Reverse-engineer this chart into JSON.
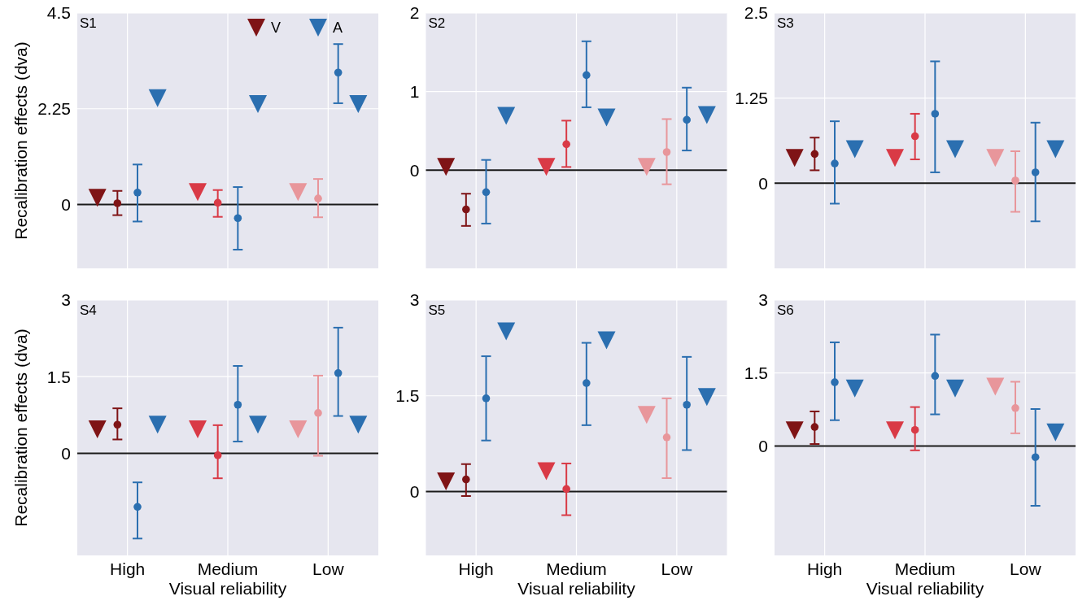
{
  "chart_data": [
    {
      "type": "scatter",
      "categories": [
        null,
        null,
        null
      ],
      "ylim": [
        -1.5,
        4.5
      ],
      "yticks": [
        0,
        2.25,
        4.5
      ],
      "ylabel": "Recalibration effects (dva)",
      "tick_labels": "y",
      "grid": true,
      "legend": "top right",
      "annotations": [
        "S1"
      ],
      "ref_lines": [
        {
          "axis": "y",
          "value": 0,
          "color": "#1a1a1a"
        }
      ],
      "series": [
        {
          "type": "scatter",
          "name": "V",
          "marker": "triangle",
          "colors": [
            "#7f1416",
            "#d93a46",
            "#e8969b"
          ],
          "values": [
            0.16,
            0.29,
            0.29
          ]
        },
        {
          "type": "scatter",
          "marker": "circle",
          "colors": [
            "#7f1416",
            "#d93a46",
            "#e8969b"
          ],
          "values": [
            0.03,
            0.04,
            0.14
          ],
          "errors": [
            [
              -0.25,
              0.32
            ],
            [
              -0.29,
              0.34
            ],
            [
              -0.3,
              0.6
            ]
          ]
        },
        {
          "type": "scatter",
          "marker": "circle",
          "colors": [
            "#2b6fb0",
            "#2b6fb0",
            "#2b6fb0"
          ],
          "values": [
            0.28,
            -0.32,
            3.1
          ],
          "errors": [
            [
              -0.4,
              0.94
            ],
            [
              -1.06,
              0.41
            ],
            [
              2.38,
              3.77
            ]
          ]
        },
        {
          "type": "scatter",
          "name": "A",
          "marker": "triangle",
          "colors": [
            "#2b6fb0",
            "#2b6fb0",
            "#2b6fb0"
          ],
          "values": [
            2.5,
            2.36,
            2.36
          ]
        }
      ]
    },
    {
      "type": "scatter",
      "categories": [
        null,
        null,
        null
      ],
      "ylim": [
        -1.25,
        2
      ],
      "yticks": [
        0,
        1,
        2
      ],
      "tick_labels": "y",
      "grid": true,
      "annotations": [
        "S2"
      ],
      "ref_lines": [
        {
          "axis": "y",
          "value": 0,
          "color": "#1a1a1a"
        }
      ],
      "series": [
        {
          "type": "scatter",
          "marker": "triangle",
          "colors": [
            "#7f1416",
            "#d93a46",
            "#e8969b"
          ],
          "values": [
            0.04,
            0.04,
            0.04
          ]
        },
        {
          "type": "scatter",
          "marker": "circle",
          "colors": [
            "#7f1416",
            "#d93a46",
            "#e8969b"
          ],
          "values": [
            -0.5,
            0.33,
            0.23
          ],
          "errors": [
            [
              -0.71,
              -0.3
            ],
            [
              0.04,
              0.63
            ],
            [
              -0.18,
              0.65
            ]
          ]
        },
        {
          "type": "scatter",
          "marker": "circle",
          "colors": [
            "#2b6fb0",
            "#2b6fb0",
            "#2b6fb0"
          ],
          "values": [
            -0.28,
            1.21,
            0.64
          ],
          "errors": [
            [
              -0.68,
              0.13
            ],
            [
              0.8,
              1.64
            ],
            [
              0.25,
              1.05
            ]
          ]
        },
        {
          "type": "scatter",
          "marker": "triangle",
          "colors": [
            "#2b6fb0",
            "#2b6fb0",
            "#2b6fb0"
          ],
          "values": [
            0.69,
            0.67,
            0.7
          ]
        }
      ]
    },
    {
      "type": "scatter",
      "categories": [
        null,
        null,
        null
      ],
      "ylim": [
        -1.25,
        2.5
      ],
      "yticks": [
        0,
        1.25,
        2.5
      ],
      "tick_labels": "y",
      "grid": true,
      "annotations": [
        "S3"
      ],
      "ref_lines": [
        {
          "axis": "y",
          "value": 0,
          "color": "#1a1a1a"
        }
      ],
      "series": [
        {
          "type": "scatter",
          "marker": "triangle",
          "colors": [
            "#7f1416",
            "#d93a46",
            "#e8969b"
          ],
          "values": [
            0.37,
            0.37,
            0.37
          ]
        },
        {
          "type": "scatter",
          "marker": "circle",
          "colors": [
            "#7f1416",
            "#d93a46",
            "#e8969b"
          ],
          "values": [
            0.43,
            0.69,
            0.04
          ],
          "errors": [
            [
              0.19,
              0.67
            ],
            [
              0.35,
              1.02
            ],
            [
              -0.42,
              0.47
            ]
          ]
        },
        {
          "type": "scatter",
          "marker": "circle",
          "colors": [
            "#2b6fb0",
            "#2b6fb0",
            "#2b6fb0"
          ],
          "values": [
            0.29,
            1.02,
            0.16
          ],
          "errors": [
            [
              -0.3,
              0.91
            ],
            [
              0.16,
              1.79
            ],
            [
              -0.56,
              0.89
            ]
          ]
        },
        {
          "type": "scatter",
          "marker": "triangle",
          "colors": [
            "#2b6fb0",
            "#2b6fb0",
            "#2b6fb0"
          ],
          "values": [
            0.5,
            0.5,
            0.5
          ]
        }
      ]
    },
    {
      "type": "scatter",
      "categories": [
        "High",
        "Medium",
        "Low"
      ],
      "ylim": [
        -2,
        3
      ],
      "yticks": [
        0,
        1.5,
        3
      ],
      "ylabel": "Recalibration effects (dva)",
      "xlabel": "Visual reliability",
      "grid": true,
      "annotations": [
        "S4"
      ],
      "ref_lines": [
        {
          "axis": "y",
          "value": 0,
          "color": "#1a1a1a"
        }
      ],
      "series": [
        {
          "type": "scatter",
          "marker": "triangle",
          "colors": [
            "#7f1416",
            "#d93a46",
            "#e8969b"
          ],
          "values": [
            0.47,
            0.47,
            0.47
          ]
        },
        {
          "type": "scatter",
          "marker": "circle",
          "colors": [
            "#7f1416",
            "#d93a46",
            "#e8969b"
          ],
          "values": [
            0.56,
            -0.04,
            0.79
          ],
          "errors": [
            [
              0.27,
              0.88
            ],
            [
              -0.49,
              0.55
            ],
            [
              -0.05,
              1.52
            ]
          ]
        },
        {
          "type": "scatter",
          "marker": "circle",
          "colors": [
            "#2b6fb0",
            "#2b6fb0",
            "#2b6fb0"
          ],
          "values": [
            -1.05,
            0.95,
            1.57
          ],
          "errors": [
            [
              -1.67,
              -0.57
            ],
            [
              0.23,
              1.71
            ],
            [
              0.73,
              2.46
            ]
          ]
        },
        {
          "type": "scatter",
          "marker": "triangle",
          "colors": [
            "#2b6fb0",
            "#2b6fb0",
            "#2b6fb0"
          ],
          "values": [
            0.56,
            0.56,
            0.56
          ]
        }
      ]
    },
    {
      "type": "scatter",
      "categories": [
        "High",
        "Medium",
        "Low"
      ],
      "ylim": [
        -1,
        3
      ],
      "yticks": [
        0,
        1.5,
        3
      ],
      "xlabel": "Visual reliability",
      "grid": true,
      "annotations": [
        "S5"
      ],
      "ref_lines": [
        {
          "axis": "y",
          "value": 0,
          "color": "#1a1a1a"
        }
      ],
      "series": [
        {
          "type": "scatter",
          "marker": "triangle",
          "colors": [
            "#7f1416",
            "#d93a46",
            "#e8969b"
          ],
          "values": [
            0.16,
            0.32,
            1.2
          ]
        },
        {
          "type": "scatter",
          "marker": "circle",
          "colors": [
            "#7f1416",
            "#d93a46",
            "#e8969b"
          ],
          "values": [
            0.19,
            0.04,
            0.85
          ],
          "errors": [
            [
              -0.07,
              0.43
            ],
            [
              -0.37,
              0.44
            ],
            [
              0.21,
              1.46
            ]
          ]
        },
        {
          "type": "scatter",
          "marker": "circle",
          "colors": [
            "#2b6fb0",
            "#2b6fb0",
            "#2b6fb0"
          ],
          "values": [
            1.46,
            1.7,
            1.36
          ],
          "errors": [
            [
              0.8,
              2.12
            ],
            [
              1.04,
              2.33
            ],
            [
              0.65,
              2.11
            ]
          ]
        },
        {
          "type": "scatter",
          "marker": "triangle",
          "colors": [
            "#2b6fb0",
            "#2b6fb0",
            "#2b6fb0"
          ],
          "values": [
            2.51,
            2.37,
            1.48
          ]
        }
      ]
    },
    {
      "type": "scatter",
      "categories": [
        "High",
        "Medium",
        "Low"
      ],
      "ylim": [
        -2.25,
        3
      ],
      "yticks": [
        0,
        1.5,
        3
      ],
      "xlabel": "Visual reliability",
      "grid": true,
      "annotations": [
        "S6"
      ],
      "ref_lines": [
        {
          "axis": "y",
          "value": 0,
          "color": "#1a1a1a"
        }
      ],
      "series": [
        {
          "type": "scatter",
          "marker": "triangle",
          "colors": [
            "#7f1416",
            "#d93a46",
            "#e8969b"
          ],
          "values": [
            0.32,
            0.32,
            1.22
          ]
        },
        {
          "type": "scatter",
          "marker": "circle",
          "colors": [
            "#7f1416",
            "#d93a46",
            "#e8969b"
          ],
          "values": [
            0.39,
            0.33,
            0.78
          ],
          "errors": [
            [
              0.04,
              0.71
            ],
            [
              -0.09,
              0.8
            ],
            [
              0.26,
              1.32
            ]
          ]
        },
        {
          "type": "scatter",
          "marker": "circle",
          "colors": [
            "#2b6fb0",
            "#2b6fb0",
            "#2b6fb0"
          ],
          "values": [
            1.31,
            1.44,
            -0.23
          ],
          "errors": [
            [
              0.53,
              2.13
            ],
            [
              0.65,
              2.29
            ],
            [
              -1.23,
              0.76
            ]
          ]
        },
        {
          "type": "scatter",
          "marker": "triangle",
          "colors": [
            "#2b6fb0",
            "#2b6fb0",
            "#2b6fb0"
          ],
          "values": [
            1.18,
            1.18,
            0.28
          ]
        }
      ]
    }
  ]
}
